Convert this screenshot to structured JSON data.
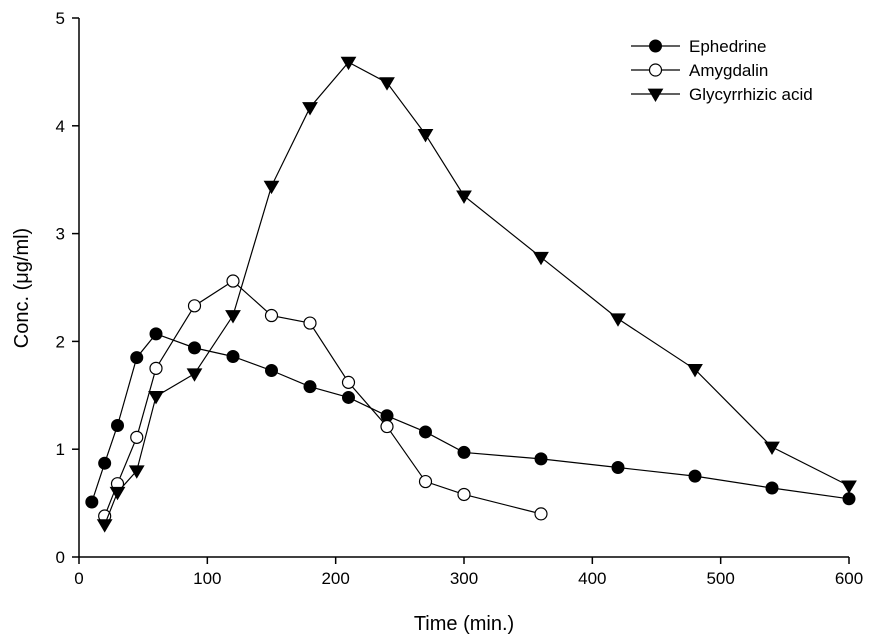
{
  "chart_data": {
    "type": "line",
    "xlabel": "Time (min.)",
    "ylabel": "Conc. (μg/ml)",
    "xlim": [
      0,
      600
    ],
    "ylim": [
      0,
      5
    ],
    "x_ticks": [
      "0",
      "100",
      "200",
      "300",
      "400",
      "500",
      "600"
    ],
    "y_ticks": [
      "0",
      "1",
      "2",
      "3",
      "4",
      "5"
    ],
    "legend_position": "top-right",
    "grid": false,
    "series": [
      {
        "name": "Ephedrine",
        "marker": "filled-circle",
        "x": [
          10,
          20,
          30,
          45,
          60,
          90,
          120,
          150,
          180,
          210,
          240,
          270,
          300,
          360,
          420,
          480,
          540,
          600
        ],
        "y": [
          0.51,
          0.87,
          1.22,
          1.85,
          2.07,
          1.94,
          1.86,
          1.73,
          1.58,
          1.48,
          1.31,
          1.16,
          0.97,
          0.91,
          0.83,
          0.75,
          0.64,
          0.54
        ]
      },
      {
        "name": "Amygdalin",
        "marker": "open-circle",
        "x": [
          20,
          30,
          45,
          60,
          90,
          120,
          150,
          180,
          210,
          240,
          270,
          300,
          360
        ],
        "y": [
          0.38,
          0.68,
          1.11,
          1.75,
          2.33,
          2.56,
          2.24,
          2.17,
          1.62,
          1.21,
          0.7,
          0.58,
          0.4
        ]
      },
      {
        "name": "Glycyrrhizic acid",
        "marker": "filled-triangle-down",
        "x": [
          20,
          30,
          45,
          60,
          90,
          120,
          150,
          180,
          210,
          240,
          270,
          300,
          360,
          420,
          480,
          540,
          600
        ],
        "y": [
          0.3,
          0.6,
          0.8,
          1.49,
          1.7,
          2.24,
          3.44,
          4.17,
          4.59,
          4.4,
          3.92,
          3.35,
          2.78,
          2.21,
          1.74,
          1.02,
          0.66
        ]
      }
    ]
  }
}
